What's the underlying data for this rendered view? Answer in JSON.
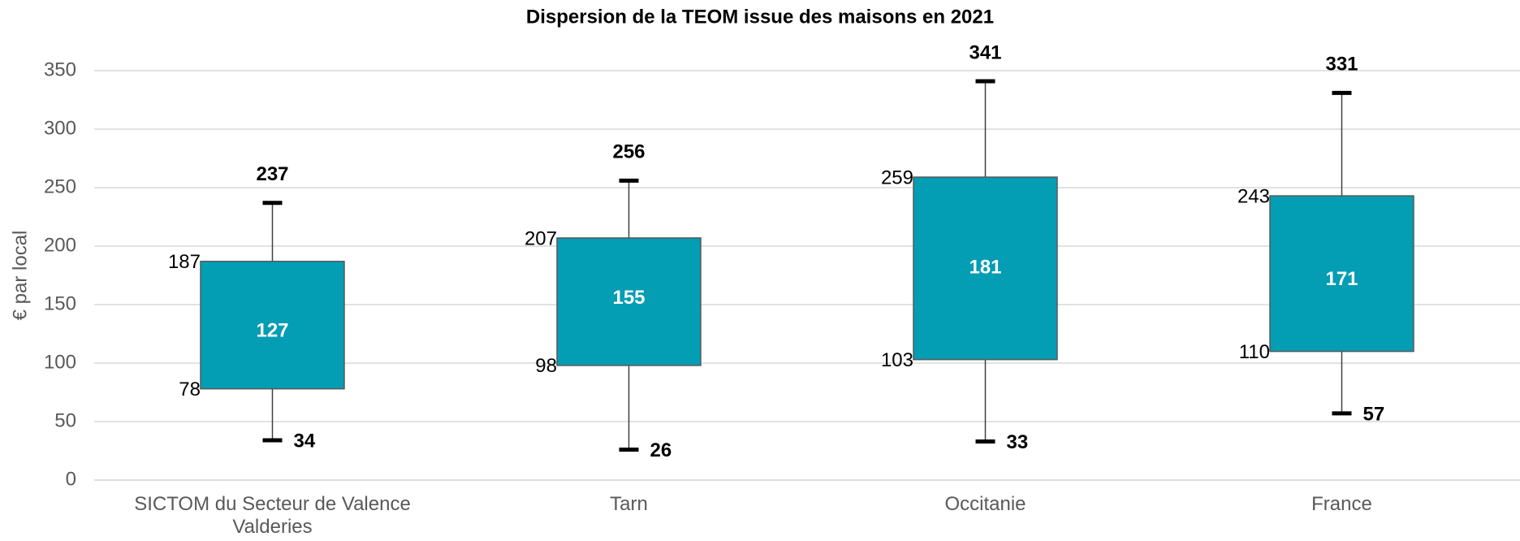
{
  "chart_data": {
    "type": "box",
    "title": "Dispersion de la TEOM issue des maisons en 2021",
    "y_label": "€ par local",
    "categories": [
      "SICTOM du Secteur de Valence Valderies",
      "Tarn",
      "Occitanie",
      "France"
    ],
    "min": [
      34,
      26,
      33,
      57
    ],
    "q1": [
      78,
      98,
      103,
      110
    ],
    "median": [
      127,
      155,
      181,
      171
    ],
    "q3": [
      187,
      207,
      259,
      243
    ],
    "max": [
      237,
      256,
      341,
      331
    ],
    "color": "#039db4",
    "ylim": [
      0,
      350
    ],
    "yticks": [
      0,
      50,
      100,
      150,
      200,
      250,
      300,
      350
    ],
    "grid": true
  }
}
